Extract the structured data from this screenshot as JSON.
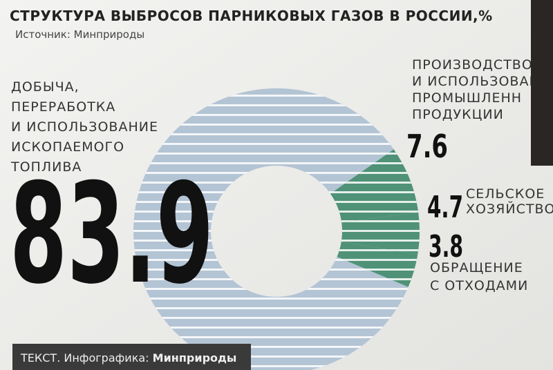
{
  "chart_data": {
    "type": "donut",
    "title": "СТРУКТУРА ВЫБРОСОВ ПАРНИКОВЫХ ГАЗОВ В РОССИИ,%",
    "subtitle": "Источник: Минприроды",
    "categories": [
      [
        "ПРОИЗВОДСТВО",
        "И ИСПОЛЬЗОВАН",
        "ПРОМЫШЛЕНН",
        "ПРОДУКЦИИ"
      ],
      [
        "СЕЛЬСКОЕ",
        "ХОЗЯЙСТВО"
      ],
      [
        "ОБРАЩЕНИЕ",
        "С ОТХОДАМИ"
      ],
      [
        "ДОБЫЧА,",
        "ПЕРЕРАБОТКА",
        "И ИСПОЛЬЗОВАНИЕ",
        "ИСКОПАЕМОГО",
        "ТОПЛИВА"
      ]
    ],
    "values": [
      7.6,
      4.7,
      3.8,
      83.9
    ],
    "colors": [
      "#4f9278",
      "#4f9278",
      "#4f9278",
      "#b3c4d4"
    ],
    "footer": {
      "prefix": "ТЕКСТ. Инфографика:",
      "source": "Минприроды"
    }
  }
}
